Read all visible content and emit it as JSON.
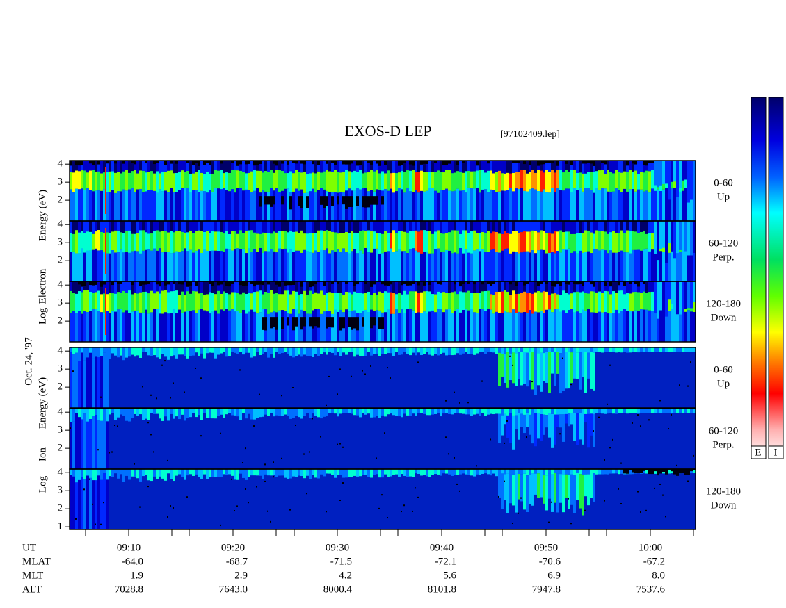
{
  "title": "EXOS-D LEP",
  "file": "[97102409.lep]",
  "date": "Oct. 24, '97",
  "electron_axis_label": [
    "Log",
    "Electron",
    "Energy (eV)"
  ],
  "ion_axis_label": [
    "Log",
    "Ion",
    "Energy (eV)"
  ],
  "ylim": [
    0.85,
    4.2
  ],
  "panels": [
    {
      "species": "electron",
      "label": [
        "0-60",
        "Up"
      ],
      "yticks": [
        2,
        3,
        4
      ]
    },
    {
      "species": "electron",
      "label": [
        "60-120",
        "Perp."
      ],
      "yticks": [
        2,
        3,
        4
      ]
    },
    {
      "species": "electron",
      "label": [
        "120-180",
        "Down"
      ],
      "yticks": [
        2,
        3,
        4
      ]
    },
    {
      "species": "ion",
      "label": [
        "0-60",
        "Up"
      ],
      "yticks": [
        2,
        3,
        4
      ]
    },
    {
      "species": "ion",
      "label": [
        "60-120",
        "Perp."
      ],
      "yticks": [
        2,
        3,
        4
      ]
    },
    {
      "species": "ion",
      "label": [
        "120-180",
        "Down"
      ],
      "yticks": [
        1,
        2,
        3,
        4
      ]
    }
  ],
  "colorbar_labels": [
    "E",
    "I"
  ],
  "footer": [
    {
      "name": "UT",
      "values": [
        "09:10",
        "09:20",
        "09:30",
        "09:40",
        "09:50",
        "10:00"
      ]
    },
    {
      "name": "MLAT",
      "values": [
        "-64.0",
        "-68.7",
        "-71.5",
        "-72.1",
        "-70.6",
        "-67.2"
      ]
    },
    {
      "name": "MLT",
      "values": [
        "1.9",
        "2.9",
        "4.2",
        "5.6",
        "6.9",
        "8.0"
      ]
    },
    {
      "name": "ALT",
      "values": [
        "7028.8",
        "7643.0",
        "8000.4",
        "8101.8",
        "7947.8",
        "7537.6"
      ]
    }
  ]
}
